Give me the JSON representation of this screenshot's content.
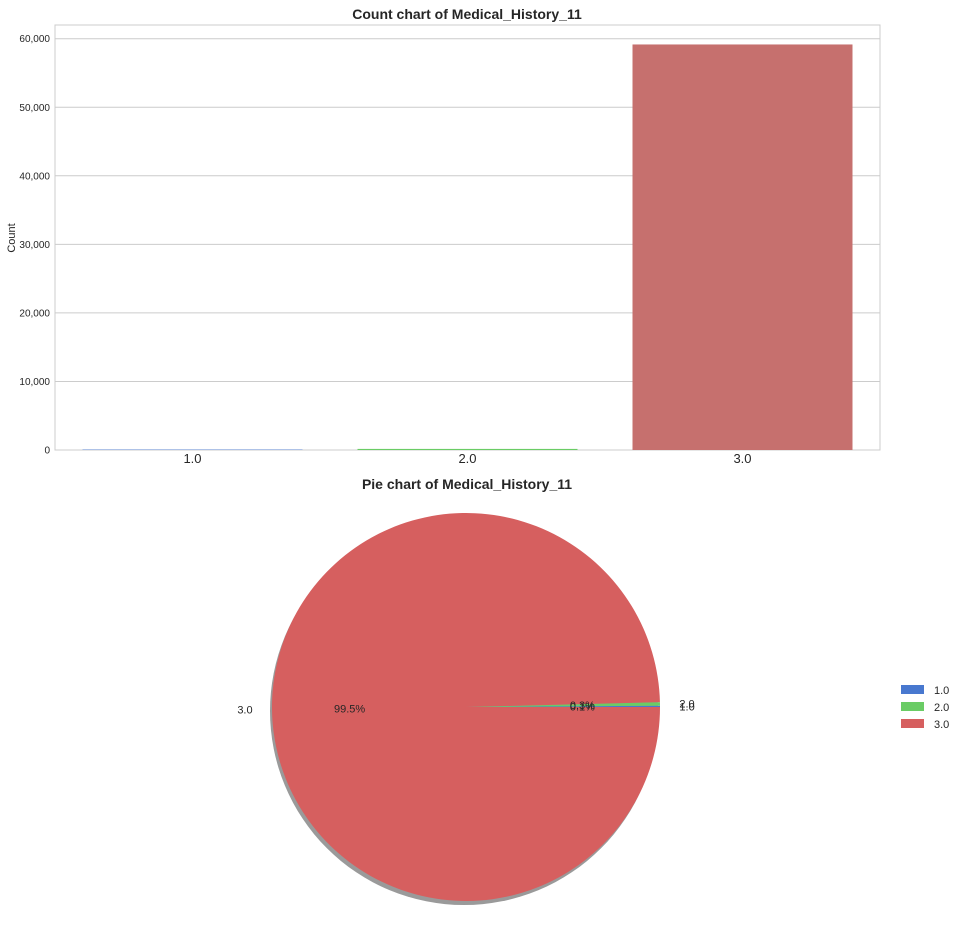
{
  "chart_data": [
    {
      "type": "bar",
      "title": "Count chart of Medical_History_11",
      "xlabel": "",
      "ylabel": "Count",
      "categories": [
        "1.0",
        "2.0",
        "3.0"
      ],
      "values": [
        62,
        159,
        59160
      ],
      "ylim": [
        0,
        62000
      ],
      "yticks": [
        0,
        10000,
        20000,
        30000,
        40000,
        50000,
        60000
      ],
      "ytick_labels": [
        "0",
        "10,000",
        "20,000",
        "30,000",
        "40,000",
        "50,000",
        "60,000"
      ],
      "colors": [
        "#4878cf",
        "#6acc65",
        "#c6706e"
      ],
      "grid": true
    },
    {
      "type": "pie",
      "title": "Pie chart of Medical_History_11",
      "categories": [
        "1.0",
        "2.0",
        "3.0"
      ],
      "values": [
        0.1,
        0.3,
        99.5
      ],
      "pct_labels": [
        "0.1%",
        "0.3%",
        "99.5%"
      ],
      "colors": [
        "#4878cf",
        "#6acc65",
        "#d65f5f"
      ],
      "shadow": true,
      "legend": {
        "placement": "right",
        "entries": [
          "1.0",
          "2.0",
          "3.0"
        ]
      }
    }
  ]
}
